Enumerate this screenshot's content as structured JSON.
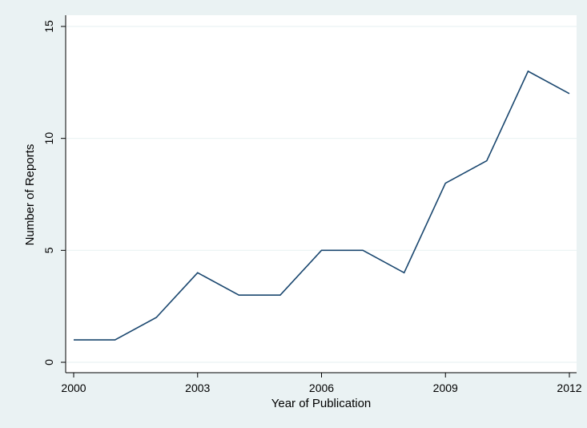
{
  "chart_data": {
    "type": "line",
    "title": "",
    "xlabel": "Year of Publication",
    "ylabel": "Number of Reports",
    "x_ticks": [
      2000,
      2003,
      2006,
      2009,
      2012
    ],
    "y_ticks": [
      0,
      5,
      10,
      15
    ],
    "xlim": [
      2000,
      2012
    ],
    "ylim": [
      0,
      15
    ],
    "grid": true,
    "series": [
      {
        "x": [
          2000,
          2001,
          2002,
          2003,
          2004,
          2005,
          2006,
          2007,
          2008,
          2009,
          2010,
          2011,
          2012
        ],
        "values": [
          1,
          1,
          2,
          4,
          3,
          3,
          5,
          5,
          4,
          8,
          9,
          13,
          12
        ]
      }
    ]
  },
  "colors": {
    "outer_background": "#eaf2f3",
    "plot_background": "#ffffff",
    "grid": "#eaf2f3",
    "axis": "#000000",
    "line": "#1a476f"
  }
}
